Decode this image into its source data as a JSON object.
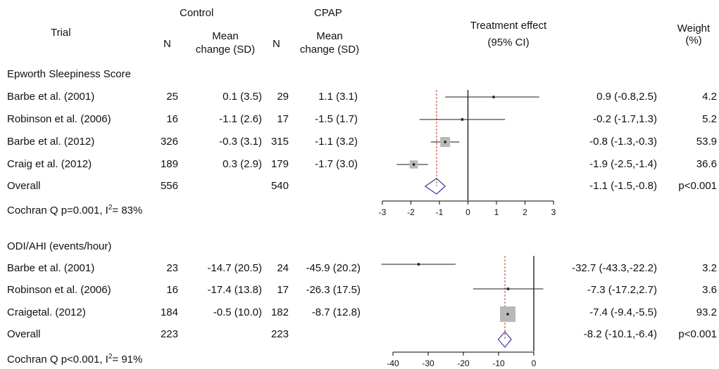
{
  "header": {
    "trial": "Trial",
    "control": "Control",
    "cpap": "CPAP",
    "n": "N",
    "mean_l1": "Mean",
    "mean_l2": "change (SD)",
    "effect_l1": "Treatment effect",
    "effect_l2": "(95% CI)",
    "weight_l1": "Weight",
    "weight_l2": "(%)"
  },
  "colors": {
    "box": "#b8b8b8",
    "line": "#1a1a1a",
    "overall": "#3a3aa0",
    "ref": "#c0392b",
    "axis": "#000000"
  },
  "chart_data": [
    {
      "type": "forest",
      "title": "Epworth Sleepiness Score",
      "heterogeneity": {
        "prefix": "Cochran Q  p=0.001, I",
        "sup": "2",
        "suffix": "= 83%"
      },
      "xlim": [
        -3,
        3
      ],
      "xticks": [
        -3,
        -2,
        -1,
        0,
        1,
        2,
        3
      ],
      "xtick_labels": [
        "-3",
        "-2",
        "-1",
        "0",
        "1",
        "2",
        "3"
      ],
      "studies": [
        {
          "trial": "Barbe et al. (2001)",
          "n_control": "25",
          "mean_control": "0.1 (3.5)",
          "n_cpap": "29",
          "mean_cpap": "1.1 (3.1)",
          "effect": 0.9,
          "lower": -0.8,
          "upper": 2.5,
          "ci_text": "0.9 (-0.8,2.5)",
          "weight": 4.2,
          "weight_text": "4.2"
        },
        {
          "trial": "Robinson et al. (2006)",
          "n_control": "16",
          "mean_control": "-1.1 (2.6)",
          "n_cpap": "17",
          "mean_cpap": "-1.5 (1.7)",
          "effect": -0.2,
          "lower": -1.7,
          "upper": 1.3,
          "ci_text": "-0.2 (-1.7,1.3)",
          "weight": 5.2,
          "weight_text": "5.2"
        },
        {
          "trial": "Barbe et al. (2012)",
          "n_control": "326",
          "mean_control": "-0.3 (3.1)",
          "n_cpap": "315",
          "mean_cpap": "-1.1 (3.2)",
          "effect": -0.8,
          "lower": -1.3,
          "upper": -0.3,
          "ci_text": "-0.8 (-1.3,-0.3)",
          "weight": 53.9,
          "weight_text": "53.9"
        },
        {
          "trial": "Craig et al. (2012)",
          "n_control": "189",
          "mean_control": "0.3 (2.9)",
          "n_cpap": "179",
          "mean_cpap": "-1.7 (3.0)",
          "effect": -1.9,
          "lower": -2.5,
          "upper": -1.4,
          "ci_text": "-1.9 (-2.5,-1.4)",
          "weight": 36.6,
          "weight_text": "36.6"
        }
      ],
      "overall": {
        "label": "Overall",
        "n_control": "556",
        "n_cpap": "540",
        "effect": -1.1,
        "lower": -1.5,
        "upper": -0.8,
        "ci_text": "-1.1 (-1.5,-0.8)",
        "p_text": "p<0.001"
      }
    },
    {
      "type": "forest",
      "title": "ODI/AHI (events/hour)",
      "heterogeneity": {
        "prefix": "Cochran Q  p<0.001, I",
        "sup": "2",
        "suffix": "= 91%"
      },
      "xlim": [
        -45,
        3
      ],
      "xticks": [
        -40,
        -30,
        -20,
        -10,
        0
      ],
      "xtick_labels": [
        "-40",
        "-30",
        "-20",
        "-10",
        "0"
      ],
      "studies": [
        {
          "trial": "Barbe et al. (2001)",
          "n_control": "23",
          "mean_control": "-14.7 (20.5)",
          "n_cpap": "24",
          "mean_cpap": "-45.9 (20.2)",
          "effect": -32.7,
          "lower": -43.3,
          "upper": -22.2,
          "ci_text": "-32.7 (-43.3,-22.2)",
          "weight": 3.2,
          "weight_text": "3.2"
        },
        {
          "trial": "Robinson et al. (2006)",
          "n_control": "16",
          "mean_control": "-17.4 (13.8)",
          "n_cpap": "17",
          "mean_cpap": "-26.3 (17.5)",
          "effect": -7.3,
          "lower": -17.2,
          "upper": 2.7,
          "ci_text": "-7.3 (-17.2,2.7)",
          "weight": 3.6,
          "weight_text": "3.6"
        },
        {
          "trial": "Craigetal. (2012)",
          "n_control": "184",
          "mean_control": "-0.5 (10.0)",
          "n_cpap": "182",
          "mean_cpap": "-8.7 (12.8)",
          "effect": -7.4,
          "lower": -9.4,
          "upper": -5.5,
          "ci_text": "-7.4 (-9.4,-5.5)",
          "weight": 93.2,
          "weight_text": "93.2"
        }
      ],
      "overall": {
        "label": "Overall",
        "n_control": "223",
        "n_cpap": "223",
        "effect": -8.2,
        "lower": -10.1,
        "upper": -6.4,
        "ci_text": "-8.2 (-10.1,-6.4)",
        "p_text": "p<0.001"
      }
    }
  ]
}
